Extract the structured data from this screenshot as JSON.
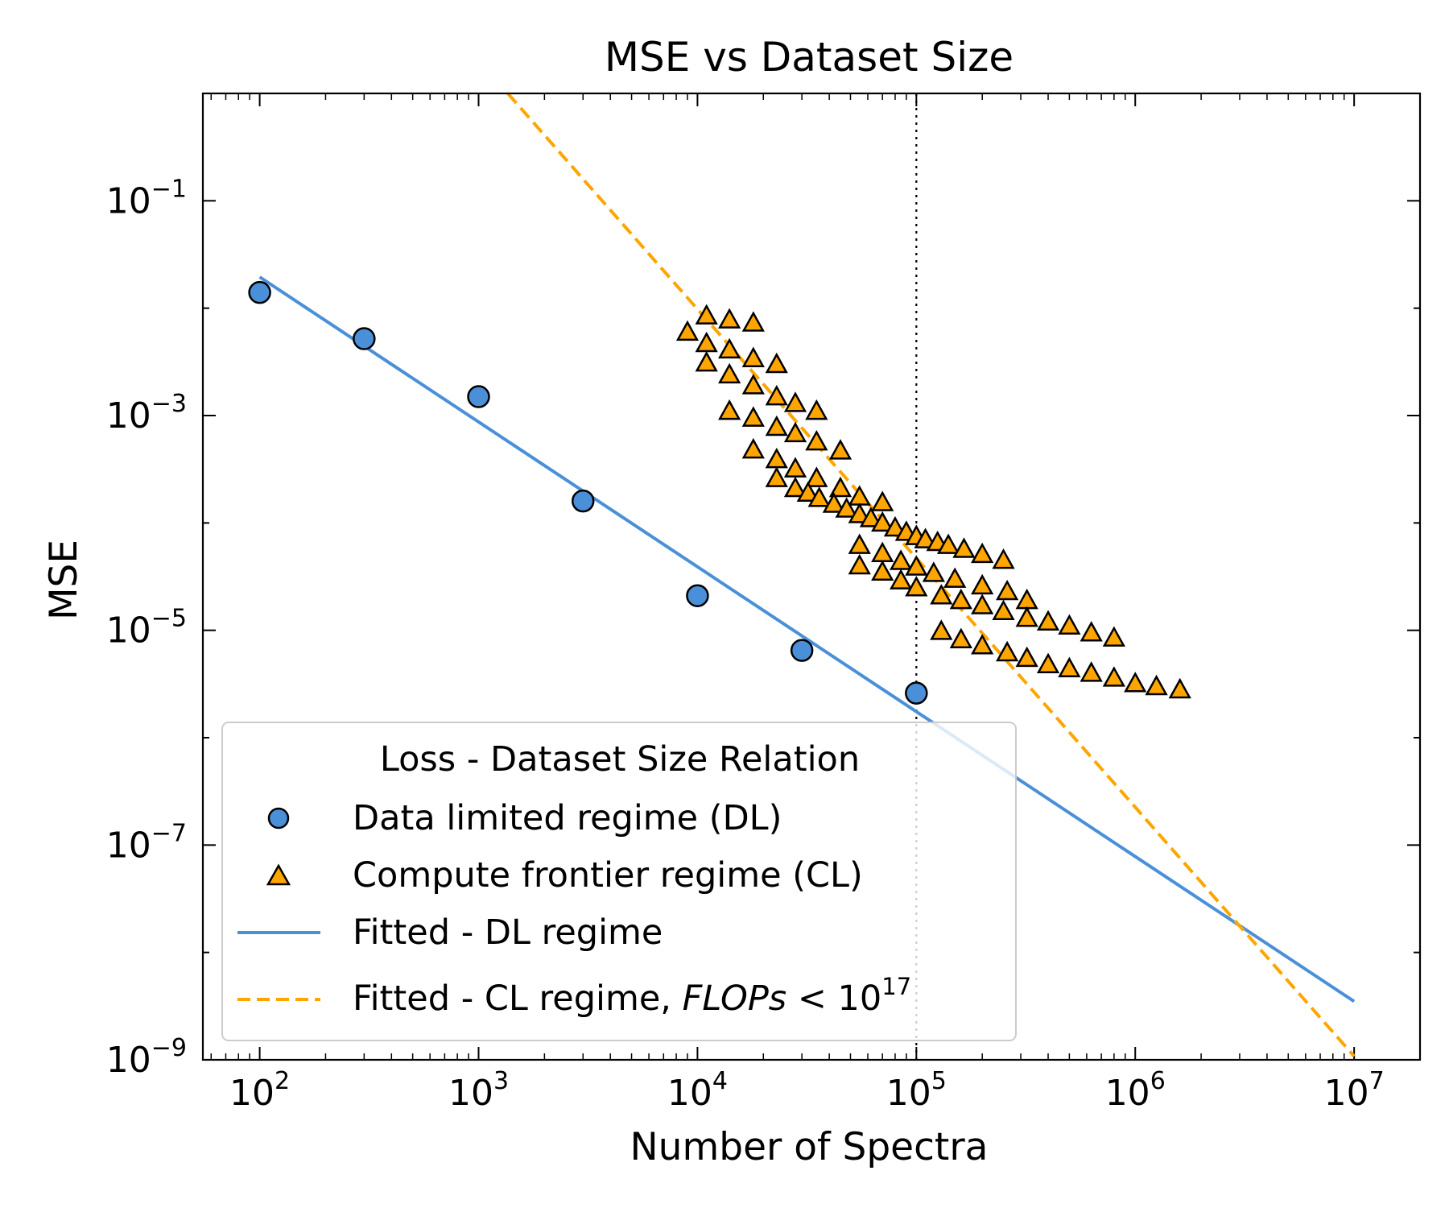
{
  "chart_data": {
    "type": "scatter",
    "title": "MSE vs Dataset Size",
    "xlabel": "Number of Spectra",
    "ylabel": "MSE",
    "xscale": "log",
    "yscale": "log",
    "xlim": [
      55,
      20000000
    ],
    "ylim": [
      1e-09,
      1.0
    ],
    "x_ticks": [
      {
        "value": 100,
        "base": "10",
        "exp": "2"
      },
      {
        "value": 1000,
        "base": "10",
        "exp": "3"
      },
      {
        "value": 10000,
        "base": "10",
        "exp": "4"
      },
      {
        "value": 100000,
        "base": "10",
        "exp": "5"
      },
      {
        "value": 1000000,
        "base": "10",
        "exp": "6"
      },
      {
        "value": 10000000,
        "base": "10",
        "exp": "7"
      }
    ],
    "y_ticks": [
      {
        "value": 0.1,
        "base": "10",
        "exp": "−1"
      },
      {
        "value": 0.001,
        "base": "10",
        "exp": "−3"
      },
      {
        "value": 1e-05,
        "base": "10",
        "exp": "−5"
      },
      {
        "value": 1e-07,
        "base": "10",
        "exp": "−7"
      },
      {
        "value": 1e-09,
        "base": "10",
        "exp": "−9"
      }
    ],
    "vline": {
      "x": 100000,
      "style": "dotted"
    },
    "series": [
      {
        "name": "Data limited regime (DL)",
        "kind": "scatter",
        "marker": "circle",
        "color": "#4a90d9",
        "points": [
          [
            100,
            0.014
          ],
          [
            300,
            0.0052
          ],
          [
            1000,
            0.0015
          ],
          [
            3000,
            0.00016
          ],
          [
            10000,
            2.1e-05
          ],
          [
            30000,
            6.5e-06
          ],
          [
            100000,
            2.6e-06
          ]
        ]
      },
      {
        "name": "Compute frontier regime (CL)",
        "kind": "scatter",
        "marker": "triangle",
        "color": "#ffa500",
        "points": [
          [
            9000,
            0.006
          ],
          [
            11000,
            0.0085
          ],
          [
            14000,
            0.0078
          ],
          [
            18000,
            0.0073
          ],
          [
            11000,
            0.0047
          ],
          [
            14000,
            0.0041
          ],
          [
            18000,
            0.0034
          ],
          [
            23000,
            0.003
          ],
          [
            11000,
            0.0031
          ],
          [
            14000,
            0.0024
          ],
          [
            18000,
            0.0019
          ],
          [
            23000,
            0.0015
          ],
          [
            28000,
            0.0013
          ],
          [
            35000,
            0.0011
          ],
          [
            14000,
            0.0011
          ],
          [
            18000,
            0.00095
          ],
          [
            23000,
            0.00078
          ],
          [
            28000,
            0.00068
          ],
          [
            35000,
            0.00057
          ],
          [
            45000,
            0.00047
          ],
          [
            18000,
            0.00048
          ],
          [
            23000,
            0.00039
          ],
          [
            28000,
            0.00032
          ],
          [
            35000,
            0.00026
          ],
          [
            45000,
            0.00021
          ],
          [
            55000,
            0.000175
          ],
          [
            70000,
            0.000155
          ],
          [
            23000,
            0.00026
          ],
          [
            28000,
            0.00021
          ],
          [
            32000,
            0.00019
          ],
          [
            36000,
            0.00017
          ],
          [
            42000,
            0.00015
          ],
          [
            48000,
            0.000135
          ],
          [
            55000,
            0.00012
          ],
          [
            62000,
            0.00011
          ],
          [
            70000,
            0.0001
          ],
          [
            80000,
            9e-05
          ],
          [
            90000,
            8.2e-05
          ],
          [
            100000,
            7.5e-05
          ],
          [
            110000,
            7e-05
          ],
          [
            125000,
            6.6e-05
          ],
          [
            140000,
            6.2e-05
          ],
          [
            165000,
            5.7e-05
          ],
          [
            200000,
            5.1e-05
          ],
          [
            250000,
            4.5e-05
          ],
          [
            55000,
            6.2e-05
          ],
          [
            70000,
            5.2e-05
          ],
          [
            85000,
            4.4e-05
          ],
          [
            100000,
            3.9e-05
          ],
          [
            120000,
            3.4e-05
          ],
          [
            150000,
            3e-05
          ],
          [
            200000,
            2.6e-05
          ],
          [
            260000,
            2.3e-05
          ],
          [
            320000,
            1.9e-05
          ],
          [
            55000,
            4e-05
          ],
          [
            70000,
            3.5e-05
          ],
          [
            85000,
            2.9e-05
          ],
          [
            100000,
            2.5e-05
          ],
          [
            130000,
            2.1e-05
          ],
          [
            160000,
            1.9e-05
          ],
          [
            200000,
            1.7e-05
          ],
          [
            250000,
            1.5e-05
          ],
          [
            320000,
            1.3e-05
          ],
          [
            400000,
            1.2e-05
          ],
          [
            500000,
            1.1e-05
          ],
          [
            630000,
            9.5e-06
          ],
          [
            800000,
            8.5e-06
          ],
          [
            130000,
            9.8e-06
          ],
          [
            160000,
            8.2e-06
          ],
          [
            200000,
            7.2e-06
          ],
          [
            260000,
            6.2e-06
          ],
          [
            320000,
            5.5e-06
          ],
          [
            400000,
            4.8e-06
          ],
          [
            500000,
            4.4e-06
          ],
          [
            630000,
            4e-06
          ],
          [
            800000,
            3.6e-06
          ],
          [
            1000000,
            3.2e-06
          ],
          [
            1250000,
            3e-06
          ],
          [
            1600000,
            2.8e-06
          ]
        ]
      },
      {
        "name": "Fitted - DL regime",
        "kind": "line",
        "style": "solid",
        "color": "#4a90d9",
        "points": [
          [
            100,
            0.0195
          ],
          [
            10000000,
            3.5e-09
          ]
        ]
      },
      {
        "name": "Fitted - CL regime, ",
        "name_italic": "FLOPs",
        "name_suffix": " < 10",
        "name_sup": "17",
        "kind": "line",
        "style": "dashed",
        "color": "#ffa500",
        "points": [
          [
            1360,
            1.0
          ],
          [
            10000000,
            1.08e-09
          ]
        ]
      }
    ],
    "legend": {
      "title": "Loss - Dataset Size Relation",
      "position": "lower-left"
    }
  }
}
